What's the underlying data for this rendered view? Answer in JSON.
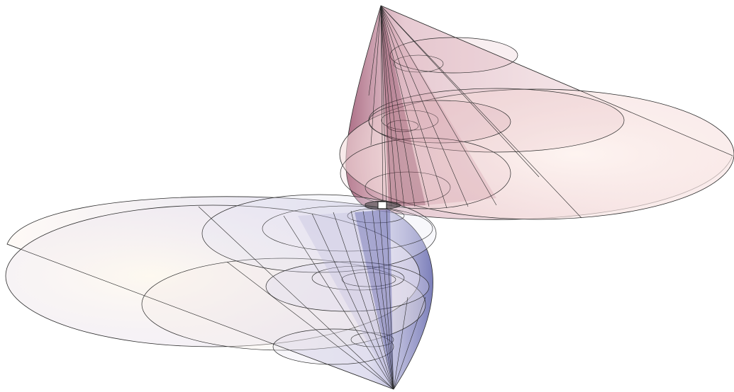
{
  "figure": {
    "kind": "3d-rendering",
    "subject": "nested-double-cones",
    "colors": {
      "upper_cone_tint": "#c98a9c",
      "upper_cone_deep": "#7a2a48",
      "lower_cone_tint": "#b9b6dc",
      "lower_cone_deep": "#5a5ea8",
      "base_warm": "#fdf0e6",
      "edge_line": "#2b2b2b",
      "background": "#ffffff"
    }
  }
}
